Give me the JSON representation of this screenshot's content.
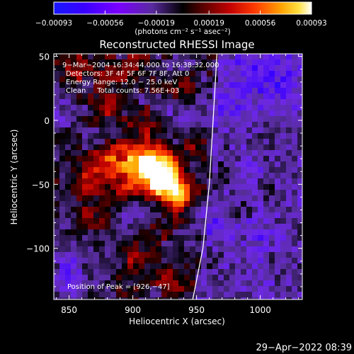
{
  "chart_data": {
    "type": "heatmap",
    "title": "Reconstructed RHESSI Image",
    "xlabel": "Heliocentric X (arcsec)",
    "ylabel": "Heliocentric Y (arcsec)",
    "xlim": [
      838,
      1033
    ],
    "ylim": [
      -140,
      52
    ],
    "x_ticks": [
      850,
      900,
      950,
      1000
    ],
    "y_ticks": [
      50,
      0,
      -50,
      -100
    ],
    "x_tick_labels": [
      "850",
      "900",
      "950",
      "1000"
    ],
    "y_tick_labels": [
      "50",
      "0",
      "−50",
      "−100"
    ],
    "colorbar": {
      "min": -0.00093,
      "max": 0.00093,
      "tick_values": [
        -0.00093,
        -0.00056,
        -0.00019,
        0.00019,
        0.00056,
        0.00093
      ],
      "tick_labels": [
        "−0.00093",
        "−0.00056",
        "−0.00019",
        "0.00019",
        "0.00056",
        "0.00093"
      ],
      "units_label": "(photons cm⁻² s⁻¹ asec⁻²)"
    },
    "annotations": [
      "9−Mar−2004 16:34:44.000 to 16:38:32.000",
      "Detectors: 3F 4F 5F 6F 7F 8F, Att 0",
      "Energy Range: 12.0 − 25.0 keV",
      "Clean     Total counts: 7.56E+03"
    ],
    "peak_label": "Position of Peak = [926,−47]",
    "peak": {
      "x": 926,
      "y": -47
    },
    "limb_line_points": [
      [
        966,
        52
      ],
      [
        963,
        0
      ],
      [
        960,
        -50
      ],
      [
        955,
        -100
      ],
      [
        947,
        -140
      ]
    ],
    "hot_sources": [
      {
        "x": 926,
        "y": -47,
        "r": 11,
        "v": 1.0
      },
      {
        "x": 918,
        "y": -34,
        "r": 10,
        "v": 0.75
      },
      {
        "x": 935,
        "y": -60,
        "r": 9,
        "v": 0.65
      },
      {
        "x": 908,
        "y": -40,
        "r": 12,
        "v": 0.5
      },
      {
        "x": 895,
        "y": -28,
        "r": 9,
        "v": 0.45
      },
      {
        "x": 878,
        "y": -35,
        "r": 10,
        "v": 0.45
      },
      {
        "x": 862,
        "y": -48,
        "r": 9,
        "v": 0.4
      },
      {
        "x": 890,
        "y": -55,
        "r": 8,
        "v": 0.35
      },
      {
        "x": 870,
        "y": -75,
        "r": 10,
        "v": 0.3
      },
      {
        "x": 860,
        "y": 42,
        "r": 10,
        "v": 0.35
      },
      {
        "x": 885,
        "y": 35,
        "r": 9,
        "v": 0.3
      },
      {
        "x": 905,
        "y": 44,
        "r": 8,
        "v": 0.28
      },
      {
        "x": 880,
        "y": 10,
        "r": 9,
        "v": 0.35
      },
      {
        "x": 910,
        "y": -5,
        "r": 8,
        "v": 0.3
      },
      {
        "x": 937,
        "y": 22,
        "r": 8,
        "v": 0.25
      },
      {
        "x": 972,
        "y": -40,
        "r": 9,
        "v": 0.35
      },
      {
        "x": 985,
        "y": -70,
        "r": 8,
        "v": 0.3
      },
      {
        "x": 1010,
        "y": -55,
        "r": 8,
        "v": 0.25
      },
      {
        "x": 1020,
        "y": -20,
        "r": 8,
        "v": 0.25
      },
      {
        "x": 995,
        "y": -15,
        "r": 7,
        "v": 0.22
      },
      {
        "x": 1015,
        "y": -110,
        "r": 9,
        "v": 0.3
      },
      {
        "x": 960,
        "y": -110,
        "r": 9,
        "v": 0.25
      },
      {
        "x": 930,
        "y": -125,
        "r": 9,
        "v": 0.3
      },
      {
        "x": 900,
        "y": -112,
        "r": 8,
        "v": 0.25
      },
      {
        "x": 915,
        "y": -90,
        "r": 8,
        "v": 0.2
      },
      {
        "x": 1028,
        "y": -85,
        "r": 7,
        "v": 0.25
      },
      {
        "x": 950,
        "y": -20,
        "r": 7,
        "v": 0.2
      }
    ],
    "cold_sources": [
      {
        "x": 995,
        "y": 40,
        "r": 14,
        "v": -0.55
      },
      {
        "x": 1020,
        "y": 30,
        "r": 12,
        "v": -0.5
      },
      {
        "x": 975,
        "y": 15,
        "r": 12,
        "v": -0.4
      },
      {
        "x": 960,
        "y": -80,
        "r": 12,
        "v": -0.35
      },
      {
        "x": 1000,
        "y": -95,
        "r": 12,
        "v": -0.35
      },
      {
        "x": 850,
        "y": -120,
        "r": 12,
        "v": -0.4
      },
      {
        "x": 900,
        "y": -75,
        "r": 10,
        "v": -0.3
      },
      {
        "x": 845,
        "y": 5,
        "r": 10,
        "v": -0.3
      },
      {
        "x": 940,
        "y": 5,
        "r": 10,
        "v": -0.3
      },
      {
        "x": 990,
        "y": -40,
        "r": 10,
        "v": -0.3
      }
    ]
  },
  "timestamp": "29−Apr−2022 08:39"
}
